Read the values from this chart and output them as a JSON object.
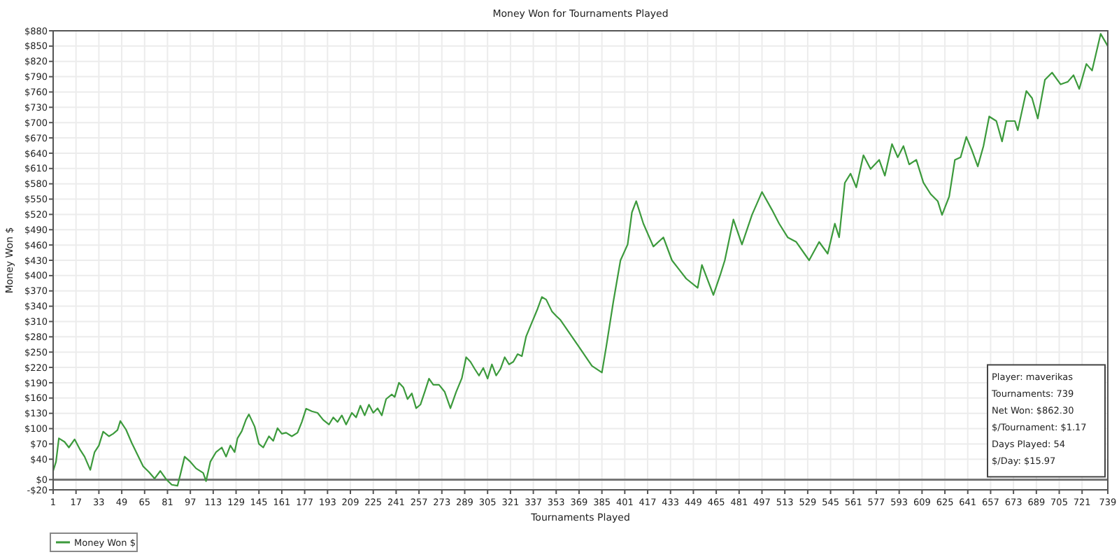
{
  "chart_data": {
    "type": "line",
    "title": "Money Won for Tournaments Played",
    "xlabel": "Tournaments Played",
    "ylabel": "Money Won $",
    "xlim": [
      1,
      739
    ],
    "xticks": [
      1,
      17,
      33,
      49,
      65,
      81,
      97,
      113,
      129,
      145,
      161,
      177,
      193,
      209,
      225,
      241,
      257,
      273,
      289,
      305,
      321,
      337,
      353,
      369,
      385,
      401,
      417,
      433,
      449,
      465,
      481,
      497,
      513,
      529,
      545,
      561,
      577,
      593,
      609,
      625,
      641,
      657,
      673,
      689,
      705,
      721,
      739
    ],
    "ylim": [
      -20,
      880
    ],
    "yticks": [
      {
        "value": -20,
        "label": "-$20"
      },
      {
        "value": 0,
        "label": "$0"
      },
      {
        "value": 40,
        "label": "$40"
      },
      {
        "value": 70,
        "label": "$70"
      },
      {
        "value": 100,
        "label": "$100"
      },
      {
        "value": 130,
        "label": "$130"
      },
      {
        "value": 160,
        "label": "$160"
      },
      {
        "value": 190,
        "label": "$190"
      },
      {
        "value": 220,
        "label": "$220"
      },
      {
        "value": 250,
        "label": "$250"
      },
      {
        "value": 280,
        "label": "$280"
      },
      {
        "value": 310,
        "label": "$310"
      },
      {
        "value": 340,
        "label": "$340"
      },
      {
        "value": 370,
        "label": "$370"
      },
      {
        "value": 400,
        "label": "$400"
      },
      {
        "value": 430,
        "label": "$430"
      },
      {
        "value": 460,
        "label": "$460"
      },
      {
        "value": 490,
        "label": "$490"
      },
      {
        "value": 520,
        "label": "$520"
      },
      {
        "value": 550,
        "label": "$550"
      },
      {
        "value": 580,
        "label": "$580"
      },
      {
        "value": 610,
        "label": "$610"
      },
      {
        "value": 640,
        "label": "$640"
      },
      {
        "value": 670,
        "label": "$670"
      },
      {
        "value": 700,
        "label": "$700"
      },
      {
        "value": 730,
        "label": "$730"
      },
      {
        "value": 760,
        "label": "$760"
      },
      {
        "value": 790,
        "label": "$790"
      },
      {
        "value": 820,
        "label": "$820"
      },
      {
        "value": 850,
        "label": "$850"
      },
      {
        "value": 880,
        "label": "$880"
      }
    ],
    "grid": true,
    "legend": "bottom",
    "marker": "none",
    "line_style": "solid",
    "ref_lines": [
      {
        "axis": "y",
        "value": 0,
        "label": null,
        "color": "#777777"
      }
    ],
    "annotations": [
      "Player: maverikas",
      "Tournaments: 739",
      "Net Won: $862.30",
      "$/Tournament: $1.17",
      "Days Played: 54",
      "$/Day: $15.97"
    ],
    "series": [
      {
        "name": "Money Won $",
        "color": "#3c9a3c",
        "x": [
          1,
          3,
          5,
          9,
          12,
          16,
          20,
          23,
          27,
          30,
          33,
          36,
          40,
          43,
          46,
          48,
          52,
          56,
          60,
          64,
          68,
          72,
          76,
          80,
          84,
          88,
          90,
          93,
          97,
          101,
          106,
          108,
          111,
          115,
          119,
          122,
          125,
          128,
          130,
          133,
          136,
          138,
          142,
          145,
          148,
          152,
          155,
          158,
          161,
          164,
          168,
          172,
          175,
          178,
          182,
          186,
          190,
          194,
          197,
          200,
          203,
          206,
          210,
          213,
          216,
          219,
          222,
          225,
          228,
          231,
          234,
          238,
          240,
          243,
          246,
          249,
          252,
          255,
          258,
          261,
          264,
          267,
          271,
          275,
          279,
          283,
          287,
          290,
          293,
          296,
          299,
          302,
          305,
          308,
          311,
          314,
          317,
          320,
          323,
          326,
          329,
          332,
          336,
          340,
          343,
          346,
          350,
          353,
          356,
          369,
          378,
          385,
          388,
          393,
          398,
          403,
          406,
          409,
          414,
          421,
          428,
          434,
          439,
          444,
          452,
          455,
          463,
          468,
          471,
          477,
          483,
          490,
          497,
          504,
          509,
          515,
          521,
          530,
          537,
          543,
          548,
          551,
          555,
          559,
          563,
          568,
          573,
          579,
          583,
          588,
          592,
          596,
          600,
          605,
          610,
          615,
          620,
          623,
          628,
          632,
          636,
          640,
          644,
          648,
          652,
          656,
          661,
          665,
          668,
          674,
          676,
          682,
          686,
          690,
          695,
          700,
          706,
          711,
          715,
          719,
          724,
          728,
          734,
          739
        ],
        "values": [
          17,
          35,
          81,
          74,
          63,
          79,
          58,
          45,
          19,
          54,
          67,
          94,
          85,
          90,
          97,
          115,
          98,
          72,
          49,
          26,
          15,
          2,
          17,
          1,
          -10,
          -12,
          10,
          45,
          35,
          22,
          13,
          -3,
          35,
          54,
          63,
          45,
          67,
          54,
          81,
          95,
          118,
          128,
          104,
          70,
          63,
          85,
          76,
          101,
          90,
          92,
          85,
          92,
          113,
          139,
          134,
          131,
          117,
          108,
          122,
          113,
          126,
          108,
          131,
          122,
          145,
          126,
          147,
          131,
          140,
          126,
          158,
          167,
          162,
          190,
          181,
          158,
          169,
          140,
          147,
          172,
          198,
          186,
          186,
          172,
          140,
          172,
          199,
          240,
          231,
          217,
          204,
          219,
          198,
          226,
          204,
          217,
          240,
          226,
          231,
          246,
          242,
          281,
          308,
          335,
          358,
          353,
          330,
          321,
          313,
          260,
          223,
          210,
          260,
          349,
          430,
          461,
          524,
          546,
          502,
          457,
          475,
          430,
          412,
          394,
          376,
          421,
          362,
          403,
          430,
          510,
          461,
          519,
          564,
          529,
          502,
          475,
          466,
          430,
          466,
          443,
          502,
          475,
          582,
          600,
          573,
          636,
          609,
          627,
          596,
          658,
          632,
          654,
          618,
          627,
          582,
          560,
          546,
          519,
          555,
          627,
          632,
          672,
          645,
          614,
          654,
          712,
          703,
          663,
          703,
          703,
          685,
          762,
          748,
          708,
          784,
          798,
          775,
          780,
          793,
          766,
          815,
          802,
          874,
          850
        ]
      }
    ]
  }
}
